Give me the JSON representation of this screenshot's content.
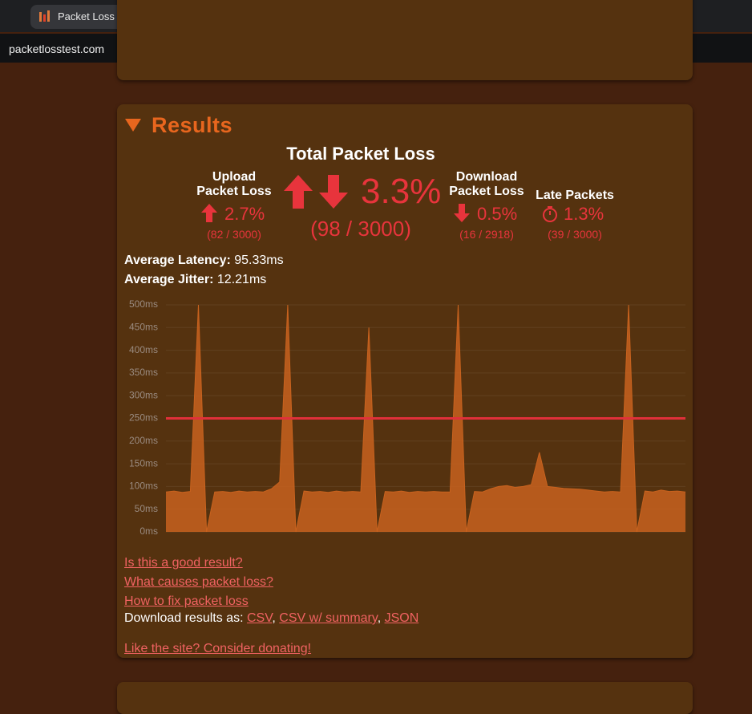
{
  "browser": {
    "tab_title": "Packet Loss Test – Test Your C",
    "url": "packetlosstest.com"
  },
  "results": {
    "title": "Results",
    "total": {
      "label": "Total Packet Loss",
      "value": "3.3%",
      "detail": "(98 / 3000)"
    },
    "upload": {
      "label": "Upload Packet Loss",
      "value": "2.7%",
      "detail": "(82 / 3000)"
    },
    "download": {
      "label": "Download Packet Loss",
      "value": "0.5%",
      "detail": "(16 / 2918)"
    },
    "late": {
      "label": "Late Packets",
      "value": "1.3%",
      "detail": "(39 / 3000)"
    },
    "latency": {
      "label": "Average Latency:",
      "value": "95.33ms"
    },
    "jitter": {
      "label": "Average Jitter:",
      "value": "12.21ms"
    },
    "chart": {
      "type": "area",
      "color": "#c8621e",
      "threshold": 250,
      "threshold_color": "#e0303a",
      "grid": true,
      "ylim": [
        0,
        500
      ],
      "yticks": [
        {
          "value": 0,
          "label": "0ms"
        },
        {
          "value": 50,
          "label": "50ms"
        },
        {
          "value": 100,
          "label": "100ms"
        },
        {
          "value": 150,
          "label": "150ms"
        },
        {
          "value": 200,
          "label": "200ms"
        },
        {
          "value": 250,
          "label": "250ms"
        },
        {
          "value": 300,
          "label": "300ms"
        },
        {
          "value": 350,
          "label": "350ms"
        },
        {
          "value": 400,
          "label": "400ms"
        },
        {
          "value": 450,
          "label": "450ms"
        },
        {
          "value": 500,
          "label": "500ms"
        }
      ],
      "values": [
        88,
        90,
        87,
        89,
        500,
        0,
        88,
        89,
        87,
        90,
        88,
        89,
        88,
        95,
        110,
        500,
        0,
        90,
        88,
        89,
        87,
        90,
        88,
        89,
        88,
        450,
        0,
        89,
        88,
        90,
        87,
        89,
        88,
        89,
        88,
        88,
        500,
        0,
        89,
        88,
        95,
        100,
        102,
        98,
        100,
        104,
        175,
        100,
        98,
        96,
        95,
        94,
        92,
        90,
        88,
        89,
        88,
        500,
        0,
        90,
        88,
        92,
        89,
        90,
        88
      ]
    },
    "links": [
      "Is this a good result?",
      "What causes packet loss?",
      "How to fix packet loss"
    ],
    "export": {
      "label": "Download results as:",
      "separator": ", ",
      "formats": [
        "CSV",
        "CSV w/ summary",
        "JSON"
      ]
    },
    "donate": "Like the site? Consider donating!"
  }
}
